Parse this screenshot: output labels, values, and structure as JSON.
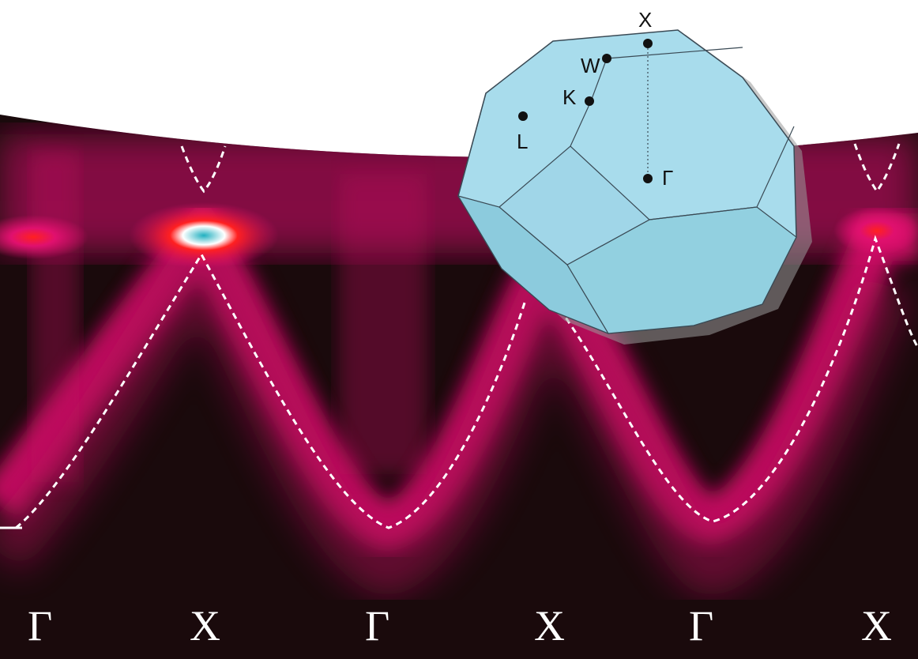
{
  "figure": {
    "colors": {
      "background": "#1a0a0c",
      "intensity": "#e0106e",
      "hotspot": "#ff2020",
      "peak": "#20b0c0",
      "dashed_band": "#ffffff",
      "zone_face": "#a8dcec",
      "zone_edge": "#3a4a55"
    },
    "axis_labels": [
      "Γ",
      "X",
      "Γ",
      "X",
      "Γ",
      "X"
    ],
    "brillouin_zone": {
      "points": [
        "X",
        "W",
        "K",
        "L",
        "Γ"
      ]
    }
  }
}
